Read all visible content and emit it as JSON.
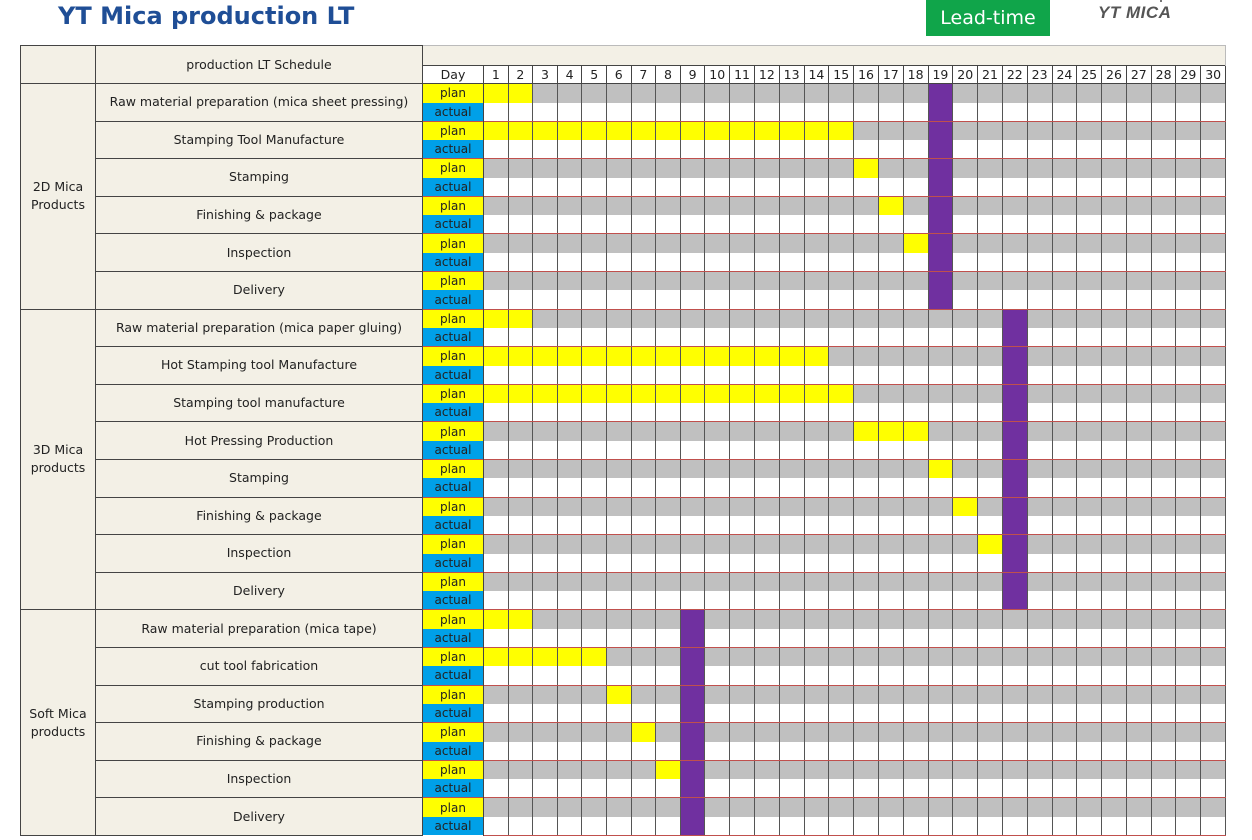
{
  "header": {
    "title": "YT Mica production LT",
    "badge": "Lead-time",
    "logo": "YT MICA"
  },
  "table": {
    "heading": "production LT Schedule",
    "day_label": "Day",
    "plan_label": "plan",
    "actual_label": "actual",
    "days": [
      1,
      2,
      3,
      4,
      5,
      6,
      7,
      8,
      9,
      10,
      11,
      12,
      13,
      14,
      15,
      16,
      17,
      18,
      19,
      20,
      21,
      22,
      23,
      24,
      25,
      26,
      27,
      28,
      29,
      30
    ],
    "colors": {
      "plan_cell": "#ffff00",
      "actual_cell": "#00a0e8",
      "idle_plan": "#c0c0c0",
      "lead_time_marker": "#7030a0",
      "badge": "#10a54a",
      "title": "#1f4e96"
    },
    "groups": [
      {
        "label": "2D Mica Products",
        "lead_time_day": 19,
        "tasks": [
          {
            "name": "Raw material preparation (mica sheet pressing)",
            "plan_days": [
              1,
              2
            ]
          },
          {
            "name": "Stamping Tool Manufacture",
            "plan_days": [
              1,
              15
            ]
          },
          {
            "name": "Stamping",
            "plan_days": [
              16,
              16
            ]
          },
          {
            "name": "Finishing & package",
            "plan_days": [
              17,
              17
            ]
          },
          {
            "name": "Inspection",
            "plan_days": [
              18,
              18
            ]
          },
          {
            "name": "Delivery",
            "plan_days": []
          }
        ]
      },
      {
        "label": "3D Mica products",
        "lead_time_day": 22,
        "tasks": [
          {
            "name": "Raw material preparation (mica paper gluing)",
            "plan_days": [
              1,
              2
            ]
          },
          {
            "name": "Hot Stamping tool Manufacture",
            "plan_days": [
              1,
              14
            ]
          },
          {
            "name": "Stamping tool manufacture",
            "plan_days": [
              1,
              15
            ]
          },
          {
            "name": "Hot Pressing Production",
            "plan_days": [
              16,
              18
            ]
          },
          {
            "name": "Stamping",
            "plan_days": [
              19,
              19
            ]
          },
          {
            "name": "Finishing & package",
            "plan_days": [
              20,
              20
            ]
          },
          {
            "name": "Inspection",
            "plan_days": [
              21,
              21
            ]
          },
          {
            "name": "Delivery",
            "plan_days": []
          }
        ]
      },
      {
        "label": "Soft Mica products",
        "lead_time_day": 9,
        "tasks": [
          {
            "name": "Raw material preparation (mica tape)",
            "plan_days": [
              1,
              2
            ]
          },
          {
            "name": "cut tool fabrication",
            "plan_days": [
              1,
              5
            ]
          },
          {
            "name": "Stamping production",
            "plan_days": [
              6,
              6
            ]
          },
          {
            "name": "Finishing & package",
            "plan_days": [
              7,
              7
            ]
          },
          {
            "name": "Inspection",
            "plan_days": [
              8,
              8
            ]
          },
          {
            "name": "Delivery",
            "plan_days": []
          }
        ]
      }
    ]
  }
}
